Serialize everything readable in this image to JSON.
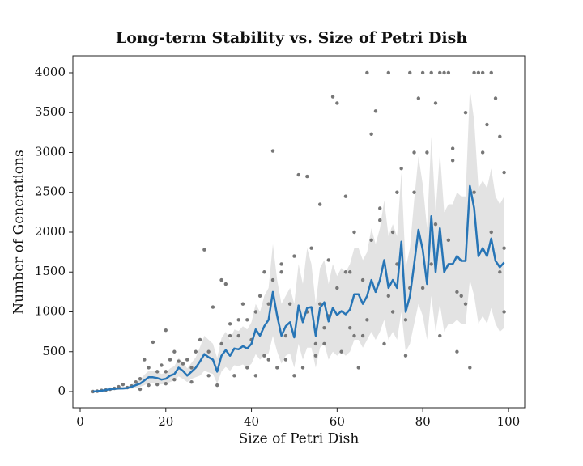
{
  "chart_data": {
    "type": "scatter-with-trend",
    "title": "Long-term Stability vs. Size of Petri Dish",
    "x_label": "Size of Petri Dish",
    "y_label": "Number of Generations",
    "xlim": [
      -1.7,
      103.8
    ],
    "ylim": [
      -203,
      4213
    ],
    "xticks": [
      0,
      20,
      40,
      60,
      80,
      100
    ],
    "yticks": [
      0,
      500,
      1000,
      1500,
      2000,
      2500,
      3000,
      3500,
      4000
    ],
    "grid": false,
    "points": {
      "color": "#777777",
      "x": [
        3,
        4,
        5,
        6,
        7,
        8,
        9,
        10,
        11,
        12,
        13,
        14,
        15,
        16,
        17,
        18,
        19,
        20,
        21,
        22,
        14,
        16,
        18,
        20,
        22,
        24,
        26,
        28,
        29,
        30,
        31,
        32,
        33,
        34,
        35,
        36,
        37,
        38,
        39,
        40,
        41,
        42,
        43,
        44,
        45,
        46,
        47,
        48,
        49,
        50,
        51,
        52,
        53,
        54,
        55,
        56,
        57,
        58,
        59,
        60,
        61,
        62,
        63,
        64,
        65,
        66,
        67,
        68,
        69,
        70,
        71,
        72,
        73,
        74,
        75,
        76,
        77,
        78,
        79,
        80,
        81,
        82,
        83,
        84,
        85,
        86,
        87,
        88,
        89,
        90,
        91,
        92,
        93,
        94,
        95,
        96,
        97,
        98,
        99,
        99,
        25,
        27,
        33,
        37,
        41,
        44,
        48,
        52,
        56,
        60,
        62,
        64,
        66,
        68,
        70,
        72,
        74,
        76,
        78,
        80,
        82,
        84,
        86,
        88,
        90,
        92,
        94,
        96,
        98,
        99,
        45,
        50,
        55,
        58,
        63,
        67,
        73,
        77,
        83,
        87,
        20,
        23,
        26,
        30,
        35,
        39,
        43,
        47,
        53,
        57
      ],
      "y": [
        0,
        5,
        15,
        20,
        30,
        40,
        60,
        90,
        50,
        70,
        120,
        160,
        400,
        300,
        620,
        250,
        330,
        770,
        400,
        500,
        30,
        80,
        90,
        100,
        150,
        350,
        120,
        650,
        1780,
        200,
        1060,
        80,
        1400,
        1350,
        850,
        200,
        700,
        1100,
        300,
        650,
        200,
        1200,
        1500,
        400,
        3020,
        300,
        1600,
        400,
        1100,
        200,
        2720,
        300,
        2700,
        1800,
        450,
        2350,
        600,
        1650,
        3700,
        3620,
        500,
        2450,
        800,
        2000,
        300,
        700,
        4000,
        3230,
        3520,
        2300,
        600,
        4000,
        1000,
        2500,
        2800,
        450,
        4000,
        3000,
        3680,
        4000,
        3000,
        4000,
        3620,
        4000,
        4000,
        4000,
        3050,
        500,
        1200,
        3500,
        300,
        4000,
        4000,
        4000,
        3350,
        4000,
        3680,
        3200,
        2750,
        1800,
        400,
        500,
        600,
        900,
        1000,
        1100,
        700,
        900,
        1100,
        1300,
        1500,
        700,
        1400,
        1900,
        2150,
        1200,
        1600,
        900,
        2500,
        1300,
        1600,
        700,
        1900,
        1250,
        1100,
        2500,
        3000,
        2000,
        1500,
        1000,
        1400,
        1700,
        600,
        950,
        1500,
        900,
        2000,
        1300,
        2100,
        2900,
        250,
        380,
        300,
        500,
        700,
        900,
        450,
        1500,
        1000,
        800
      ]
    },
    "x": [
      3,
      4,
      5,
      6,
      7,
      8,
      9,
      10,
      11,
      12,
      13,
      14,
      15,
      16,
      17,
      18,
      19,
      20,
      21,
      22,
      23,
      24,
      25,
      26,
      27,
      28,
      29,
      30,
      31,
      32,
      33,
      34,
      35,
      36,
      37,
      38,
      39,
      40,
      41,
      42,
      43,
      44,
      45,
      46,
      47,
      48,
      49,
      50,
      51,
      52,
      53,
      54,
      55,
      56,
      57,
      58,
      59,
      60,
      61,
      62,
      63,
      64,
      65,
      66,
      67,
      68,
      69,
      70,
      71,
      72,
      73,
      74,
      75,
      76,
      77,
      78,
      79,
      80,
      81,
      82,
      83,
      84,
      85,
      86,
      87,
      88,
      89,
      90,
      91,
      92,
      93,
      94,
      95,
      96,
      97,
      98,
      99
    ],
    "line": {
      "color": "#2775b6",
      "values": [
        0,
        5,
        10,
        20,
        30,
        35,
        40,
        40,
        45,
        60,
        80,
        100,
        140,
        180,
        180,
        170,
        150,
        160,
        200,
        220,
        300,
        260,
        200,
        250,
        300,
        380,
        470,
        430,
        400,
        250,
        450,
        520,
        450,
        540,
        530,
        570,
        540,
        600,
        780,
        700,
        820,
        900,
        1250,
        950,
        700,
        820,
        870,
        680,
        1080,
        870,
        1050,
        1060,
        700,
        1050,
        1120,
        880,
        1050,
        960,
        1010,
        970,
        1030,
        1220,
        1220,
        1100,
        1200,
        1400,
        1250,
        1400,
        1650,
        1300,
        1400,
        1300,
        1880,
        1000,
        1200,
        1600,
        2030,
        1780,
        1350,
        2200,
        1500,
        2050,
        1500,
        1600,
        1600,
        1700,
        1640,
        1640,
        2580,
        2300,
        1700,
        1800,
        1700,
        1920,
        1640,
        1560,
        1620
      ]
    },
    "band": {
      "color": "#e3e3e3",
      "lower": [
        0,
        0,
        5,
        10,
        15,
        20,
        20,
        25,
        30,
        35,
        45,
        60,
        80,
        110,
        110,
        100,
        90,
        100,
        120,
        140,
        190,
        160,
        120,
        160,
        180,
        200,
        260,
        240,
        220,
        100,
        250,
        310,
        260,
        330,
        320,
        340,
        300,
        350,
        470,
        400,
        450,
        480,
        700,
        500,
        350,
        450,
        480,
        300,
        600,
        400,
        550,
        550,
        300,
        550,
        600,
        400,
        500,
        450,
        500,
        450,
        500,
        650,
        650,
        550,
        650,
        750,
        650,
        750,
        900,
        650,
        750,
        650,
        1000,
        500,
        600,
        850,
        1100,
        950,
        650,
        1200,
        750,
        1100,
        750,
        850,
        850,
        900,
        850,
        850,
        1400,
        1200,
        850,
        950,
        850,
        1050,
        850,
        750,
        800
      ],
      "upper": [
        10,
        15,
        20,
        30,
        45,
        55,
        60,
        60,
        65,
        90,
        120,
        150,
        210,
        260,
        260,
        250,
        220,
        240,
        290,
        320,
        420,
        370,
        290,
        360,
        430,
        560,
        700,
        650,
        600,
        420,
        670,
        750,
        650,
        780,
        760,
        820,
        780,
        870,
        1100,
        1000,
        1200,
        1300,
        1850,
        1400,
        1100,
        1200,
        1300,
        1100,
        1600,
        1350,
        1800,
        1600,
        1100,
        1550,
        1650,
        1350,
        1600,
        1450,
        1550,
        1500,
        1600,
        1800,
        1800,
        1650,
        1750,
        2050,
        1850,
        2050,
        2400,
        1950,
        2100,
        1950,
        2750,
        1550,
        1800,
        2400,
        2950,
        2600,
        2050,
        3200,
        2250,
        3000,
        2250,
        2350,
        2350,
        2500,
        2450,
        2450,
        3800,
        3400,
        2550,
        2650,
        2550,
        2800,
        2450,
        2350,
        2450
      ]
    }
  }
}
